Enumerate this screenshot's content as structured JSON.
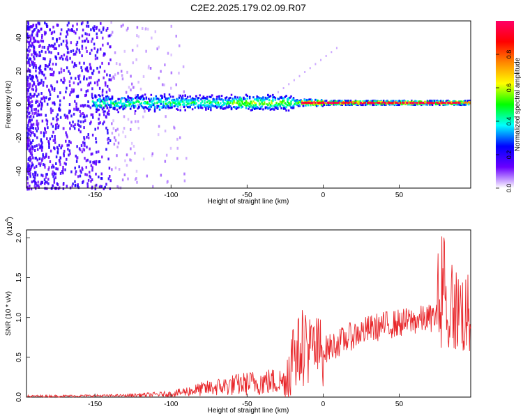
{
  "title": "C2E2.2025.179.02.09.R07",
  "chart_data": [
    {
      "type": "heatmap",
      "xlabel": "Height of straight line (km)",
      "ylabel": "Frequency (Hz)",
      "xlim": [
        -195,
        97
      ],
      "ylim": [
        -50,
        50
      ],
      "x_ticks": [
        -150,
        -100,
        -50,
        0,
        50
      ],
      "y_ticks": [
        -40,
        -20,
        0,
        20,
        40
      ],
      "colorbar": {
        "label": "Normalized spectral amplitude",
        "range": [
          0,
          1
        ],
        "ticks": [
          "0.0",
          "0.2",
          "0.4",
          "0.6",
          "0.8"
        ],
        "colormap": [
          "#ffffff",
          "#6a00ff",
          "#0000ff",
          "#00ffff",
          "#00ff00",
          "#ffff00",
          "#ff8800",
          "#ff0000",
          "#ff0066"
        ]
      },
      "features": {
        "noise_region_x": [
          -195,
          -100
        ],
        "echo_center_freq_hz": 1,
        "peak_region_x": [
          -15,
          90
        ]
      }
    },
    {
      "type": "line",
      "xlabel": "Height of straight line (km)",
      "ylabel": "SNR (10 * v/v)",
      "y_scale_label": "(x10",
      "y_scale_exp": "4",
      "y_scale_close": ")",
      "xlim": [
        -195,
        97
      ],
      "ylim": [
        0,
        2.1
      ],
      "x_ticks": [
        -150,
        -100,
        -50,
        0,
        50
      ],
      "y_ticks": [
        "0.0",
        "0.5",
        "1.0",
        "1.5",
        "2.0"
      ],
      "color": "#e8262a",
      "trend": {
        "x": [
          -195,
          -130,
          -100,
          -80,
          -60,
          -40,
          -25,
          -20,
          -10,
          0,
          10,
          20,
          30,
          40,
          50,
          60,
          70,
          80,
          90,
          95
        ],
        "y": [
          0.01,
          0.02,
          0.04,
          0.1,
          0.15,
          0.19,
          0.2,
          0.55,
          0.6,
          0.58,
          0.68,
          0.78,
          0.85,
          0.9,
          0.93,
          0.96,
          0.99,
          1.05,
          1.1,
          1.0
        ]
      }
    }
  ]
}
